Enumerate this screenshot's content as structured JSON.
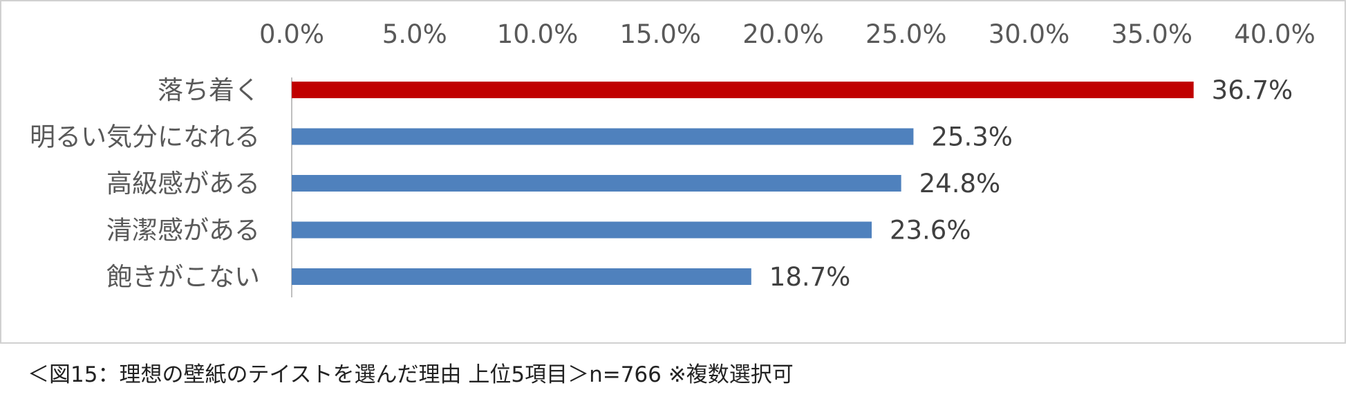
{
  "chart_data": {
    "type": "bar",
    "orientation": "horizontal",
    "categories": [
      "落ち着く",
      "明るい気分になれる",
      "高級感がある",
      "清潔感がある",
      "飽きがこない"
    ],
    "values": [
      36.7,
      25.3,
      24.8,
      23.6,
      18.7
    ],
    "data_labels": [
      "36.7%",
      "25.3%",
      "24.8%",
      "23.6%",
      "18.7%"
    ],
    "xlim": [
      0,
      40
    ],
    "x_ticks": [
      0,
      5,
      10,
      15,
      20,
      25,
      30,
      35,
      40
    ],
    "x_tick_labels": [
      "0.0%",
      "5.0%",
      "10.0%",
      "15.0%",
      "20.0%",
      "25.0%",
      "30.0%",
      "35.0%",
      "40.0%"
    ],
    "x_axis_position": "top",
    "grid": false,
    "colors": {
      "highlight": "#c00000",
      "default": "#4f81bd"
    },
    "highlight_index": 0
  },
  "caption": "＜図15：理想の壁紙のテイストを選んだ理由 上位5項目＞n=766 ※複数選択可"
}
